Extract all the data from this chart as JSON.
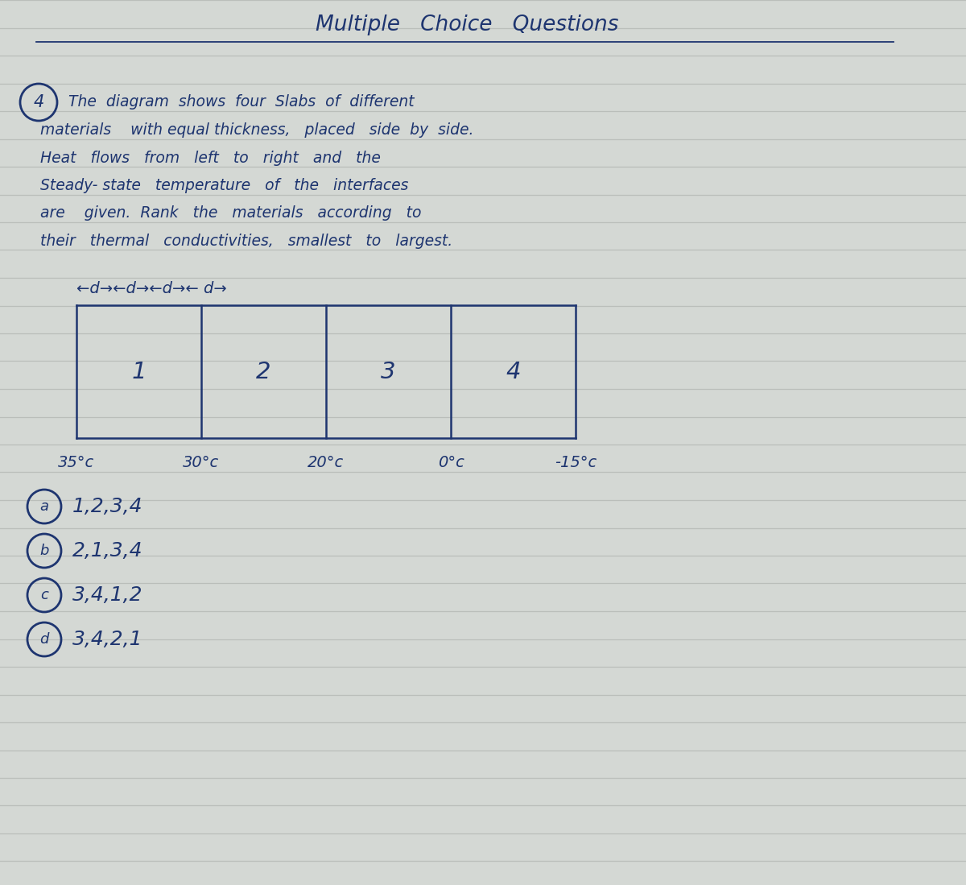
{
  "background_color": "#d4d8d4",
  "line_color": "#b8bcb8",
  "text_color": "#1e3570",
  "title": "Multiple   Choice   Questions",
  "slab_labels": [
    "1",
    "2",
    "3",
    "4"
  ],
  "temperatures": [
    "35°c",
    "30°c",
    "20°c",
    "0°c",
    "-15°c"
  ],
  "options": [
    {
      "letter": "a",
      "text": "1,2,3,4"
    },
    {
      "letter": "b",
      "text": "2,1,3,4"
    },
    {
      "letter": "c",
      "text": "3,4,1,2"
    },
    {
      "letter": "d",
      "text": "3,4,2,1"
    }
  ],
  "fig_width": 12.0,
  "fig_height": 10.99,
  "dpi": 100
}
